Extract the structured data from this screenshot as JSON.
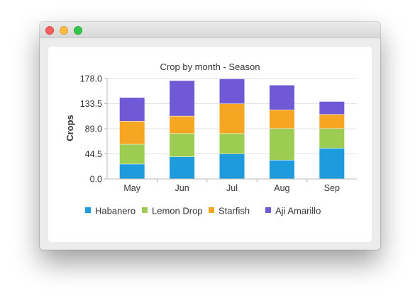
{
  "chart_data": {
    "type": "bar",
    "stacked": true,
    "title": "Crop by month - Season",
    "xlabel": "",
    "ylabel": "Crops",
    "categories": [
      "May",
      "Jun",
      "Jul",
      "Aug",
      "Sep"
    ],
    "ylim": [
      0,
      178
    ],
    "yticks": [
      "0.0",
      "44.5",
      "89.0",
      "133.5",
      "178.0"
    ],
    "grid": true,
    "legend_position": "bottom",
    "series": [
      {
        "name": "Habanero",
        "color": "#1e9bdc",
        "values": [
          26,
          39,
          44,
          33,
          54
        ]
      },
      {
        "name": "Lemon Drop",
        "color": "#9ccc52",
        "values": [
          35,
          41,
          36,
          56,
          35
        ]
      },
      {
        "name": "Starfish",
        "color": "#f6a623",
        "values": [
          41,
          31,
          53,
          33,
          25
        ]
      },
      {
        "name": "Aji Amarillo",
        "color": "#7059d4",
        "values": [
          42,
          63,
          44,
          44,
          23
        ]
      }
    ]
  }
}
